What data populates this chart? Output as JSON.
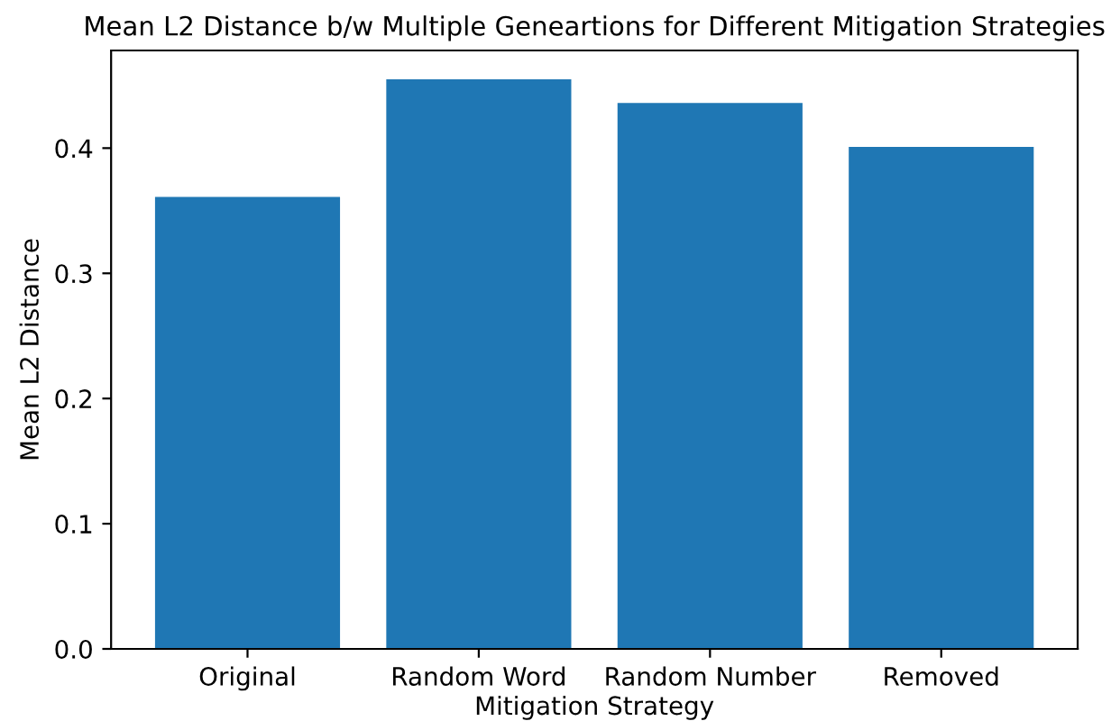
{
  "chart_data": {
    "type": "bar",
    "title": "Mean L2 Distance b/w Multiple Geneartions for Different Mitigation Strategies",
    "xlabel": "Mitigation Strategy",
    "ylabel": "Mean L2 Distance",
    "categories": [
      "Original",
      "Random Word",
      "Random Number",
      "Removed"
    ],
    "values": [
      0.361,
      0.455,
      0.436,
      0.401
    ],
    "color": "#1f77b4",
    "ylim": [
      0,
      0.478
    ],
    "yticks": [
      {
        "value": 0,
        "label": "0.0"
      },
      0.1,
      0.2,
      0.3,
      0.4
    ],
    "grid": false
  }
}
